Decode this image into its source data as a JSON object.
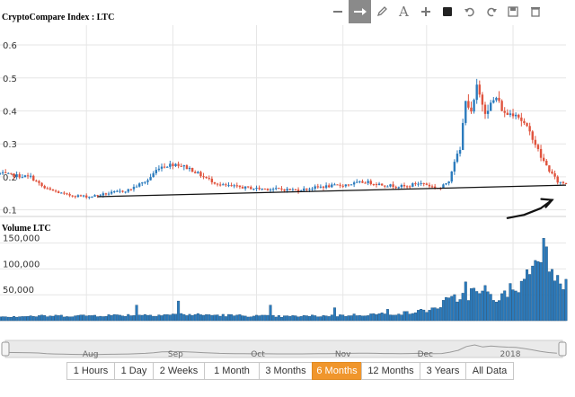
{
  "toolbar": {
    "tools": [
      {
        "name": "zoom-out-tool",
        "glyph": "minus",
        "active": false
      },
      {
        "name": "line-tool",
        "glyph": "arrow",
        "active": true
      },
      {
        "name": "pencil-tool",
        "glyph": "pencil",
        "active": false
      },
      {
        "name": "text-tool",
        "glyph": "A",
        "active": false
      },
      {
        "name": "crosshair-tool",
        "glyph": "plus",
        "active": false
      },
      {
        "name": "shape-tool",
        "glyph": "square",
        "active": false
      },
      {
        "name": "undo-tool",
        "glyph": "undo",
        "active": false
      },
      {
        "name": "redo-tool",
        "glyph": "redo",
        "active": false
      },
      {
        "name": "save-tool",
        "glyph": "save",
        "active": false
      },
      {
        "name": "delete-tool",
        "glyph": "trash",
        "active": false
      }
    ]
  },
  "chart_data": {
    "type": "candlestick",
    "title": "CryptoCompare Index : LTC",
    "price_axis": {
      "ticks": [
        0.1,
        0.2,
        0.3,
        0.4,
        0.5,
        0.6
      ],
      "tick_labels": [
        "0.1",
        "0.2",
        "0.3",
        "0.4",
        "0.5",
        "0.6"
      ],
      "range": [
        0.08,
        0.66
      ]
    },
    "volume": {
      "title": "Volume LTC",
      "ticks": [
        50000,
        100000,
        150000
      ],
      "tick_labels": [
        "50,000",
        "100,000",
        "150,000"
      ],
      "range": [
        0,
        165000
      ]
    },
    "x_axis": {
      "start": "2017-07-01",
      "end": "2018-01-20",
      "month_labels": [
        {
          "date": "2017-08-01",
          "label": "Aug"
        },
        {
          "date": "2017-09-01",
          "label": "Sep"
        },
        {
          "date": "2017-10-01",
          "label": "Oct"
        },
        {
          "date": "2017-11-01",
          "label": "Nov"
        },
        {
          "date": "2017-12-01",
          "label": "Dec"
        },
        {
          "date": "2018-01-01",
          "label": "2018"
        }
      ]
    },
    "close_anchors": [
      [
        "2017-07-01",
        0.21
      ],
      [
        "2017-07-05",
        0.205
      ],
      [
        "2017-07-12",
        0.2
      ],
      [
        "2017-07-17",
        0.165
      ],
      [
        "2017-07-25",
        0.145
      ],
      [
        "2017-08-02",
        0.14
      ],
      [
        "2017-08-09",
        0.15
      ],
      [
        "2017-08-16",
        0.16
      ],
      [
        "2017-08-23",
        0.19
      ],
      [
        "2017-08-27",
        0.23
      ],
      [
        "2017-09-02",
        0.24
      ],
      [
        "2017-09-07",
        0.225
      ],
      [
        "2017-09-12",
        0.2
      ],
      [
        "2017-09-18",
        0.175
      ],
      [
        "2017-09-24",
        0.17
      ],
      [
        "2017-09-30",
        0.165
      ],
      [
        "2017-10-08",
        0.163
      ],
      [
        "2017-10-16",
        0.16
      ],
      [
        "2017-10-24",
        0.17
      ],
      [
        "2017-11-01",
        0.175
      ],
      [
        "2017-11-09",
        0.185
      ],
      [
        "2017-11-16",
        0.175
      ],
      [
        "2017-11-24",
        0.17
      ],
      [
        "2017-11-27",
        0.18
      ],
      [
        "2017-11-30",
        0.18
      ],
      [
        "2017-12-03",
        0.17
      ],
      [
        "2017-12-06",
        0.165
      ],
      [
        "2017-12-09",
        0.19
      ],
      [
        "2017-12-11",
        0.25
      ],
      [
        "2017-12-13",
        0.28
      ],
      [
        "2017-12-15",
        0.44
      ],
      [
        "2017-12-17",
        0.39
      ],
      [
        "2017-12-19",
        0.47
      ],
      [
        "2017-12-22",
        0.4
      ],
      [
        "2017-12-26",
        0.44
      ],
      [
        "2017-12-29",
        0.39
      ],
      [
        "2018-01-02",
        0.395
      ],
      [
        "2018-01-05",
        0.36
      ],
      [
        "2018-01-08",
        0.32
      ],
      [
        "2018-01-11",
        0.26
      ],
      [
        "2018-01-14",
        0.22
      ],
      [
        "2018-01-17",
        0.185
      ],
      [
        "2018-01-20",
        0.18
      ]
    ],
    "volume_anchors": [
      [
        "2017-07-01",
        8000
      ],
      [
        "2017-08-05",
        10000
      ],
      [
        "2017-09-05",
        12000
      ],
      [
        "2017-10-10",
        8000
      ],
      [
        "2017-11-01",
        10000
      ],
      [
        "2017-11-25",
        15000
      ],
      [
        "2017-12-03",
        22000
      ],
      [
        "2017-12-10",
        40000
      ],
      [
        "2017-12-18",
        55000
      ],
      [
        "2017-12-25",
        45000
      ],
      [
        "2018-01-01",
        50000
      ],
      [
        "2018-01-05",
        80000
      ],
      [
        "2018-01-09",
        120000
      ],
      [
        "2018-01-11",
        150000
      ],
      [
        "2018-01-15",
        110000
      ],
      [
        "2018-01-20",
        70000
      ]
    ],
    "volume_spikes": [
      [
        "2017-08-19",
        30000
      ],
      [
        "2017-09-03",
        38000
      ],
      [
        "2017-10-06",
        30000
      ],
      [
        "2017-10-29",
        25000
      ],
      [
        "2017-11-17",
        22000
      ],
      [
        "2017-12-08",
        45000
      ],
      [
        "2017-12-15",
        75000
      ],
      [
        "2017-12-22",
        68000
      ],
      [
        "2017-12-31",
        72000
      ]
    ],
    "up_color": "#2b7bbd",
    "down_color": "#e0533d",
    "annotations": [
      {
        "type": "trend-line",
        "from": [
          "2017-08-05",
          0.14
        ],
        "to": [
          "2018-01-20",
          0.175
        ]
      },
      {
        "type": "hand-drawn-arrow",
        "points": [
          [
            "2017-12-30",
            0.075
          ],
          [
            "2018-01-05",
            0.085
          ],
          [
            "2018-01-11",
            0.105
          ],
          [
            "2018-01-15",
            0.13
          ]
        ]
      }
    ]
  },
  "range_selector": {
    "buttons": [
      "1 Hours",
      "1 Day",
      "2 Weeks",
      "1 Month",
      "3 Months",
      "6 Months",
      "12 Months",
      "3 Years",
      "All Data"
    ],
    "active": "6 Months"
  }
}
